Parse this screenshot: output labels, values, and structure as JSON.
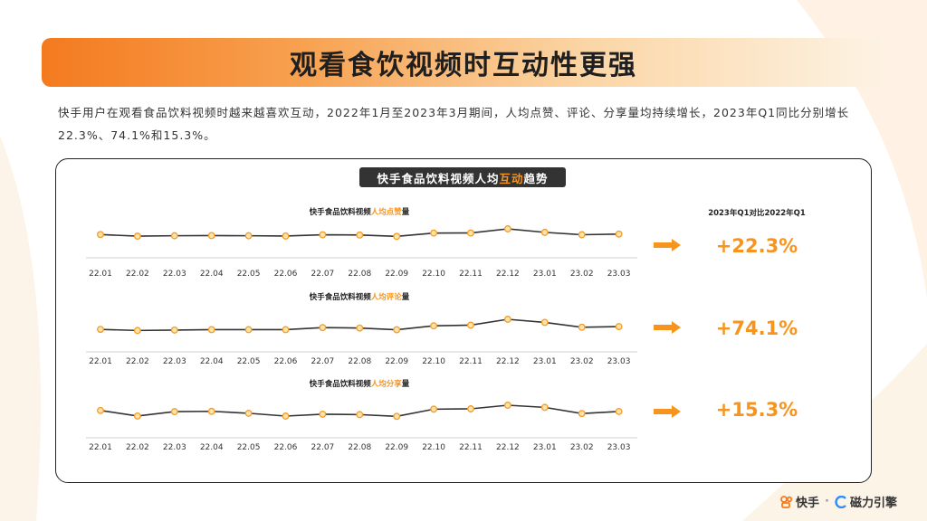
{
  "title": "观看食饮视频时互动性更强",
  "intro": "快手用户在观看食品饮料视频时越来越喜欢互动，2022年1月至2023年3月期间，人均点赞、评论、分享量均持续增长，2023年Q1同比分别增长22.3%、74.1%和15.3%。",
  "panel_title": {
    "prefix": "快手食品饮料视频人均",
    "highlight": "互动",
    "suffix": "趋势"
  },
  "comparison_header": "2023年Q1对比2022年Q1",
  "colors": {
    "accent": "#f7941d",
    "line": "#333333",
    "marker_fill": "#fce3a8",
    "marker_stroke": "#f39c2a"
  },
  "icons": {
    "arrow": "right-arrow-icon"
  },
  "chart_data": [
    {
      "type": "line",
      "title_prefix": "快手食品饮料视频",
      "title_highlight": "人均点赞",
      "title_suffix": "量",
      "categories": [
        "22.01",
        "22.02",
        "22.03",
        "22.04",
        "22.05",
        "22.06",
        "22.07",
        "22.08",
        "22.09",
        "22.10",
        "22.11",
        "22.12",
        "23.01",
        "23.02",
        "23.03"
      ],
      "values": [
        0.62,
        0.32,
        0.4,
        0.43,
        0.4,
        0.35,
        0.58,
        0.53,
        0.28,
        0.9,
        0.91,
        1.68,
        1.03,
        0.59,
        0.71
      ],
      "growth": "+22.3%"
    },
    {
      "type": "line",
      "title_prefix": "快手食品饮料视频",
      "title_highlight": "人均评论",
      "title_suffix": "量",
      "categories": [
        "22.01",
        "22.02",
        "22.03",
        "22.04",
        "22.05",
        "22.06",
        "22.07",
        "22.08",
        "22.09",
        "22.10",
        "22.11",
        "22.12",
        "23.01",
        "23.02",
        "23.03"
      ],
      "values": [
        0.42,
        0.24,
        0.31,
        0.38,
        0.37,
        0.37,
        0.71,
        0.64,
        0.36,
        1.0,
        1.11,
        2.06,
        1.56,
        0.76,
        0.88
      ],
      "growth": "+74.1%"
    },
    {
      "type": "line",
      "title_prefix": "快手食品饮料视频",
      "title_highlight": "人均分享",
      "title_suffix": "量",
      "categories": [
        "22.01",
        "22.02",
        "22.03",
        "22.04",
        "22.05",
        "22.06",
        "22.07",
        "22.08",
        "22.09",
        "22.10",
        "22.11",
        "22.12",
        "23.01",
        "23.02",
        "23.03"
      ],
      "values": [
        1.11,
        0.28,
        0.93,
        0.98,
        0.69,
        0.27,
        0.55,
        0.49,
        0.23,
        1.3,
        1.35,
        1.89,
        1.57,
        0.65,
        0.96
      ],
      "growth": "+15.3%"
    }
  ],
  "footer": {
    "logo1": "快手",
    "separator": "·",
    "logo2": "磁力引擎"
  }
}
